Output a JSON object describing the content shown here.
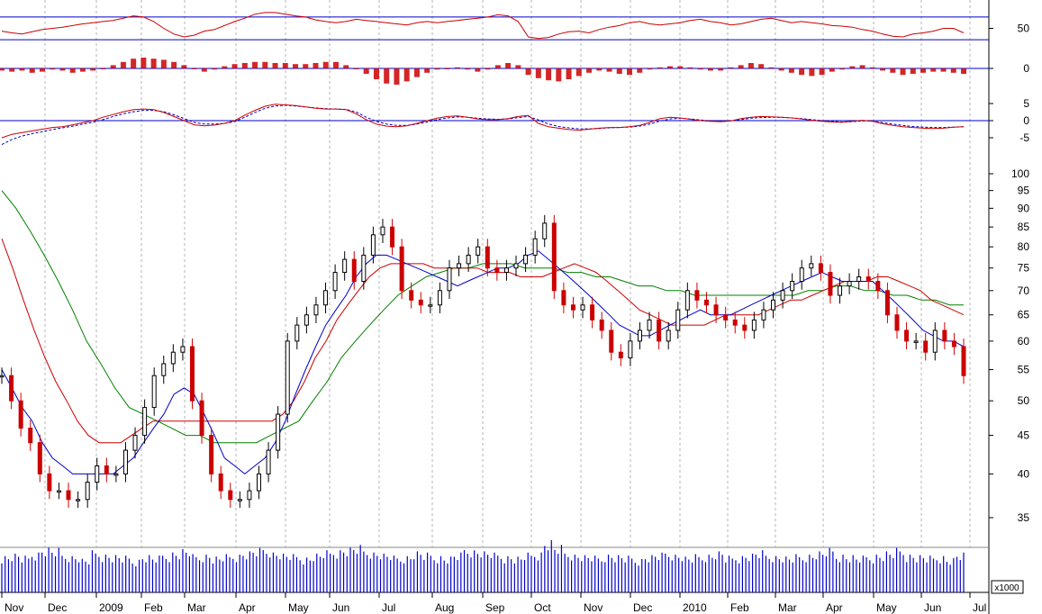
{
  "chart_data": {
    "type": "candlestick-with-indicators",
    "title": "",
    "x_months": [
      "Nov",
      "Dec",
      "2009",
      "Feb",
      "Mar",
      "Apr",
      "May",
      "Jun",
      "Jul",
      "Aug",
      "Sep",
      "Oct",
      "Nov",
      "Dec",
      "2010",
      "Feb",
      "Mar",
      "Apr",
      "May",
      "Jun",
      "Jul"
    ],
    "volume_unit": "x1000",
    "panels": {
      "rsi": {
        "ticks": [
          "50"
        ],
        "reference_lines": [
          70,
          30
        ],
        "series": [
          {
            "color": "#cc0000",
            "values": [
              45,
              42,
              40,
              44,
              48,
              50,
              52,
              55,
              58,
              60,
              62,
              64,
              68,
              72,
              70,
              62,
              50,
              40,
              35,
              38,
              45,
              48,
              55,
              62,
              68,
              75,
              78,
              78,
              75,
              72,
              70,
              65,
              62,
              60,
              62,
              66,
              64,
              62,
              60,
              58,
              56,
              60,
              62,
              60,
              62,
              64,
              66,
              68,
              70,
              74,
              72,
              62,
              35,
              32,
              34,
              40,
              44,
              45,
              42,
              48,
              52,
              55,
              60,
              62,
              58,
              56,
              58,
              60,
              64,
              66,
              62,
              60,
              56,
              58,
              62,
              66,
              68,
              64,
              60,
              62,
              60,
              58,
              55,
              54,
              52,
              48,
              45,
              40,
              36,
              35,
              40,
              42,
              45,
              50,
              50,
              42
            ]
          }
        ]
      },
      "macd_histogram": {
        "ticks": [
          "0"
        ],
        "values": [
          -2,
          -3,
          -2,
          -4,
          -3,
          -1,
          -2,
          -4,
          -3,
          -2,
          0,
          3,
          6,
          9,
          10,
          9,
          8,
          6,
          3,
          0,
          -3,
          -1,
          2,
          4,
          5,
          6,
          6,
          5,
          5,
          4,
          4,
          5,
          6,
          6,
          3,
          0,
          -5,
          -10,
          -14,
          -15,
          -12,
          -8,
          -4,
          -1,
          0,
          1,
          -1,
          -3,
          -1,
          3,
          5,
          3,
          -6,
          -9,
          -11,
          -12,
          -10,
          -7,
          -4,
          -2,
          -3,
          -5,
          -6,
          -4,
          -1,
          1,
          2,
          2,
          1,
          -1,
          -2,
          -2,
          1,
          3,
          5,
          4,
          1,
          -2,
          -4,
          -6,
          -7,
          -6,
          -3,
          -1,
          2,
          3,
          1,
          -2,
          -4,
          -6,
          -5,
          -4,
          -3,
          -3,
          -4,
          -5
        ]
      },
      "macd": {
        "ticks": [
          "5",
          "0",
          "-5"
        ],
        "macd": [
          -5,
          -4,
          -3.5,
          -3,
          -2.5,
          -2,
          -1.8,
          -1.2,
          -0.6,
          0,
          1,
          1.8,
          2.6,
          3.2,
          3.4,
          3.2,
          2.4,
          1.2,
          0,
          -1.2,
          -1.5,
          -1.3,
          -0.8,
          0,
          1.6,
          3,
          4.2,
          4.8,
          4.6,
          4.4,
          4,
          3.6,
          3.4,
          3.4,
          3.2,
          2,
          0.3,
          -1,
          -1.6,
          -1.8,
          -1.5,
          -0.8,
          0,
          0.7,
          1.2,
          1.4,
          1,
          0.5,
          0.3,
          0.3,
          0.6,
          1.2,
          1.5,
          -0.8,
          -1.8,
          -2.2,
          -2.6,
          -2.8,
          -2.5,
          -2.2,
          -2,
          -2,
          -1.8,
          -1.4,
          -0.5,
          0.6,
          1,
          0.8,
          0.4,
          0,
          -0.2,
          -0.3,
          -0.1,
          0.6,
          1,
          1.2,
          1.1,
          1,
          0.8,
          0.5,
          0.1,
          -0.2,
          -0.4,
          -0.5,
          -0.2,
          0.1,
          -0.2,
          -0.9,
          -1.4,
          -1.8,
          -2,
          -2.2,
          -2.3,
          -2.2,
          -1.9,
          -1.8
        ],
        "signal": [
          -7,
          -5.5,
          -4.5,
          -3.8,
          -3.2,
          -2.6,
          -2.1,
          -1.6,
          -1,
          -0.5,
          0.3,
          1.2,
          2,
          2.6,
          3,
          3,
          2.6,
          1.7,
          0.6,
          -0.5,
          -1,
          -1,
          -0.8,
          -0.3,
          1,
          2.4,
          3.6,
          4.3,
          4.5,
          4.3,
          4,
          3.7,
          3.5,
          3.4,
          3.3,
          2.5,
          1,
          -0.2,
          -1,
          -1.4,
          -1.4,
          -1,
          -0.4,
          0.3,
          0.8,
          1.1,
          1,
          0.7,
          0.5,
          0.4,
          0.5,
          0.9,
          1.2,
          0.2,
          -1,
          -1.7,
          -2.1,
          -2.4,
          -2.4,
          -2.3,
          -2.1,
          -2,
          -1.9,
          -1.6,
          -1,
          -0.1,
          0.5,
          0.7,
          0.5,
          0.2,
          -0.1,
          -0.2,
          -0.1,
          0.3,
          0.7,
          0.9,
          1,
          1,
          0.8,
          0.6,
          0.3,
          0,
          -0.2,
          -0.4,
          -0.3,
          -0.1,
          -0.1,
          -0.6,
          -1,
          -1.4,
          -1.7,
          -1.9,
          -2,
          -2,
          -1.9,
          -1.8
        ]
      },
      "price": {
        "ticks": [
          "100",
          "95",
          "90",
          "85",
          "80",
          "75",
          "70",
          "65",
          "60",
          "55",
          "50",
          "45",
          "40",
          "35"
        ],
        "close": [
          54,
          50,
          46,
          44,
          40,
          38,
          38,
          37,
          37,
          39,
          41,
          40,
          40,
          43,
          45,
          49,
          54,
          56,
          58,
          59,
          50,
          45,
          40,
          38,
          37,
          37,
          38,
          40,
          43,
          48,
          60,
          63,
          65,
          67,
          70,
          74,
          77,
          72,
          78,
          83,
          85,
          80,
          70,
          68,
          67,
          67,
          70,
          75,
          76,
          78,
          80,
          75,
          74,
          75,
          76,
          78,
          82,
          86,
          70,
          67,
          66,
          67,
          64,
          62,
          58,
          57,
          60,
          62,
          64,
          60,
          62,
          66,
          70,
          68,
          67,
          65,
          64,
          63,
          62,
          64,
          66,
          68,
          70,
          72,
          75,
          76,
          74,
          69,
          71,
          72,
          73,
          72,
          70,
          65,
          62,
          60,
          60,
          58,
          62,
          60,
          59,
          54
        ],
        "ma_short": [
          55,
          52,
          49,
          47,
          44,
          42,
          41,
          40,
          40,
          40,
          40,
          40,
          41,
          42,
          44,
          46,
          48,
          51,
          52,
          51,
          48,
          45,
          42,
          41,
          40,
          41,
          42,
          44,
          47,
          51,
          55,
          59,
          63,
          66,
          69,
          73,
          76,
          78,
          78,
          77,
          76,
          75,
          74,
          73,
          72,
          71,
          72,
          73,
          74,
          75,
          75,
          76,
          78,
          79,
          77,
          75,
          73,
          71,
          69,
          67,
          65,
          63,
          62,
          61,
          61,
          62,
          63,
          64,
          65,
          66,
          65,
          65,
          65,
          66,
          67,
          68,
          69,
          70,
          71,
          72,
          73,
          74,
          73,
          72,
          72,
          72,
          72,
          70,
          68,
          66,
          64,
          62,
          61,
          60,
          60,
          59
        ],
        "ma_medium": [
          82,
          75,
          68,
          62,
          57,
          53,
          50,
          47,
          45,
          44,
          44,
          44,
          45,
          46,
          47,
          47,
          47,
          47,
          47,
          47,
          47,
          47,
          47,
          47,
          47,
          47,
          48,
          50,
          53,
          57,
          60,
          64,
          67,
          70,
          73,
          75,
          76,
          76,
          76,
          76,
          75,
          75,
          75,
          75,
          75,
          74,
          74,
          74,
          73,
          73,
          73,
          74,
          75,
          76,
          75,
          74,
          72,
          70,
          68,
          66,
          65,
          64,
          63,
          63,
          63,
          63,
          64,
          65,
          65,
          65,
          65,
          66,
          67,
          68,
          68,
          69,
          70,
          71,
          72,
          72,
          72,
          73,
          73,
          72,
          71,
          70,
          68,
          67,
          66,
          65
        ],
        "ma_long": [
          95,
          90,
          84,
          78,
          72,
          66,
          60,
          56,
          52,
          49,
          48,
          47,
          46,
          45,
          45,
          44,
          44,
          44,
          44,
          45,
          46,
          47,
          50,
          53,
          57,
          60,
          63,
          66,
          69,
          71,
          73,
          74,
          75,
          75,
          76,
          76,
          76,
          75,
          75,
          75,
          74,
          74,
          73,
          73,
          72,
          71,
          71,
          70,
          70,
          69,
          69,
          69,
          69,
          69,
          69,
          69,
          69,
          70,
          70,
          71,
          71,
          70,
          70,
          69,
          69,
          68,
          68,
          67,
          67
        ]
      },
      "volume": {
        "ticks": [
          "50000"
        ],
        "values": [
          50,
          52,
          48,
          55,
          60,
          58,
          52,
          50,
          45,
          55,
          52,
          50,
          48,
          45,
          50,
          48,
          52,
          55,
          58,
          50,
          52,
          48,
          50,
          52,
          55,
          58,
          60,
          55,
          52,
          50,
          48,
          52,
          55,
          58,
          60,
          62,
          58,
          55,
          52,
          48,
          50,
          55,
          52,
          50,
          48,
          52,
          60,
          58,
          55,
          52,
          50,
          48,
          52,
          55,
          70,
          62,
          55,
          52,
          50,
          48,
          52,
          50,
          48,
          46,
          50,
          52,
          55,
          52,
          48,
          50,
          52,
          55,
          48,
          50,
          52,
          55,
          52,
          50,
          48,
          50,
          52,
          55,
          58,
          52,
          50,
          48,
          50,
          52,
          55,
          58,
          52,
          50,
          48,
          50,
          46,
          52
        ]
      }
    }
  }
}
